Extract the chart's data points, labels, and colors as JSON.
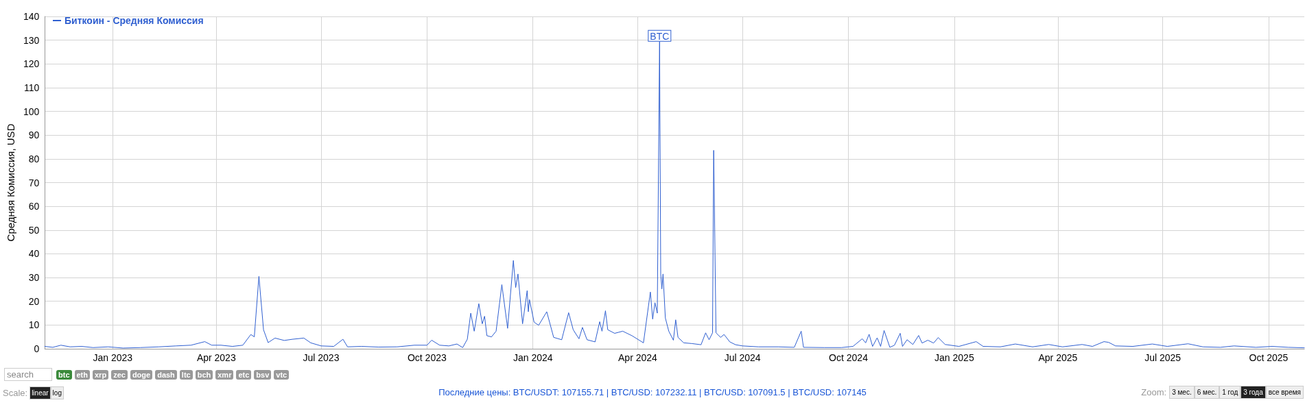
{
  "chart_data": {
    "type": "line",
    "ylabel": "Средняя Комиссия, USD",
    "xlim": [
      "2022-11-03",
      "2025-11-01"
    ],
    "xticks": [
      {
        "value": "2023-01-01",
        "label": "Jan 2023"
      },
      {
        "value": "2023-04-01",
        "label": "Apr 2023"
      },
      {
        "value": "2023-07-01",
        "label": "Jul 2023"
      },
      {
        "value": "2023-10-01",
        "label": "Oct 2023"
      },
      {
        "value": "2024-01-01",
        "label": "Jan 2024"
      },
      {
        "value": "2024-04-01",
        "label": "Apr 2024"
      },
      {
        "value": "2024-07-01",
        "label": "Jul 2024"
      },
      {
        "value": "2024-10-01",
        "label": "Oct 2024"
      },
      {
        "value": "2025-01-01",
        "label": "Jan 2025"
      },
      {
        "value": "2025-04-01",
        "label": "Apr 2025"
      },
      {
        "value": "2025-07-01",
        "label": "Jul 2025"
      },
      {
        "value": "2025-10-01",
        "label": "Oct 2025"
      }
    ],
    "ylim": [
      0,
      140
    ],
    "yticks": [
      0,
      10,
      20,
      30,
      40,
      50,
      60,
      70,
      80,
      90,
      100,
      110,
      120,
      130,
      140
    ],
    "grid": true,
    "legend": "top left",
    "marker": "none",
    "line_style": "solid",
    "series": [
      {
        "name": "Биткоин - Средняя Комиссия",
        "color": "#2f5fd0",
        "x": [
          "2022-11-03",
          "2022-11-10",
          "2022-11-17",
          "2022-11-25",
          "2022-12-05",
          "2022-12-15",
          "2022-12-28",
          "2023-01-10",
          "2023-01-25",
          "2023-02-10",
          "2023-02-25",
          "2023-03-10",
          "2023-03-22",
          "2023-03-28",
          "2023-04-05",
          "2023-04-15",
          "2023-04-24",
          "2023-05-01",
          "2023-05-04",
          "2023-05-08",
          "2023-05-12",
          "2023-05-16",
          "2023-05-22",
          "2023-05-30",
          "2023-06-06",
          "2023-06-16",
          "2023-06-22",
          "2023-07-01",
          "2023-07-12",
          "2023-07-20",
          "2023-07-24",
          "2023-08-05",
          "2023-08-20",
          "2023-09-05",
          "2023-09-20",
          "2023-10-01",
          "2023-10-05",
          "2023-10-12",
          "2023-10-20",
          "2023-10-27",
          "2023-11-01",
          "2023-11-05",
          "2023-11-08",
          "2023-11-11",
          "2023-11-15",
          "2023-11-18",
          "2023-11-20",
          "2023-11-22",
          "2023-11-26",
          "2023-11-30",
          "2023-12-05",
          "2023-12-10",
          "2023-12-15",
          "2023-12-17",
          "2023-12-19",
          "2023-12-23",
          "2023-12-27",
          "2023-12-28",
          "2023-12-29",
          "2024-01-02",
          "2024-01-06",
          "2024-01-13",
          "2024-01-19",
          "2024-01-26",
          "2024-02-01",
          "2024-02-05",
          "2024-02-10",
          "2024-02-13",
          "2024-02-17",
          "2024-02-24",
          "2024-02-28",
          "2024-03-01",
          "2024-03-04",
          "2024-03-06",
          "2024-03-12",
          "2024-03-19",
          "2024-03-27",
          "2024-04-06",
          "2024-04-12",
          "2024-04-14",
          "2024-04-16",
          "2024-04-18",
          "2024-04-20",
          "2024-04-21",
          "2024-04-22",
          "2024-04-23",
          "2024-04-25",
          "2024-04-28",
          "2024-05-02",
          "2024-05-04",
          "2024-05-06",
          "2024-05-11",
          "2024-05-18",
          "2024-05-26",
          "2024-05-30",
          "2024-06-02",
          "2024-06-05",
          "2024-06-06",
          "2024-06-08",
          "2024-06-12",
          "2024-06-15",
          "2024-06-20",
          "2024-06-25",
          "2024-07-01",
          "2024-07-15",
          "2024-08-01",
          "2024-08-15",
          "2024-08-21",
          "2024-08-23",
          "2024-09-10",
          "2024-09-25",
          "2024-10-05",
          "2024-10-13",
          "2024-10-16",
          "2024-10-19",
          "2024-10-22",
          "2024-10-26",
          "2024-10-29",
          "2024-11-01",
          "2024-11-06",
          "2024-11-10",
          "2024-11-15",
          "2024-11-17",
          "2024-11-21",
          "2024-11-26",
          "2024-12-01",
          "2024-12-04",
          "2024-12-09",
          "2024-12-14",
          "2024-12-18",
          "2024-12-24",
          "2025-01-05",
          "2025-01-20",
          "2025-01-26",
          "2025-02-10",
          "2025-02-23",
          "2025-03-10",
          "2025-03-24",
          "2025-04-05",
          "2025-04-22",
          "2025-05-01",
          "2025-05-11",
          "2025-05-15",
          "2025-05-21",
          "2025-06-05",
          "2025-06-22",
          "2025-07-05",
          "2025-07-23",
          "2025-08-05",
          "2025-08-20",
          "2025-09-01",
          "2025-09-20",
          "2025-10-04",
          "2025-10-18",
          "2025-11-01"
        ],
        "values": [
          1,
          0.6,
          1.5,
          0.8,
          1,
          0.5,
          0.8,
          0.3,
          0.5,
          0.8,
          1.2,
          1.5,
          3,
          1.5,
          1.5,
          1,
          1.5,
          6,
          5,
          30.5,
          8,
          2.6,
          4.5,
          3.5,
          4,
          4.5,
          2.5,
          1.2,
          1,
          4,
          0.8,
          1,
          0.7,
          0.8,
          1.5,
          1.5,
          3.6,
          1.5,
          1.2,
          2,
          0.5,
          4,
          15,
          7.4,
          19,
          10.5,
          13.7,
          5.5,
          5,
          7.4,
          27,
          8.6,
          37.2,
          25.8,
          31.5,
          10.5,
          24.5,
          15.6,
          20.7,
          11.2,
          9.9,
          15.6,
          4.8,
          3.8,
          15.2,
          8,
          4.2,
          9,
          3.8,
          2.9,
          11.4,
          7.4,
          16,
          8,
          6.5,
          7.4,
          5.5,
          2.5,
          23.9,
          12.5,
          19.4,
          15,
          129.4,
          31.5,
          25.2,
          31.5,
          13,
          7.4,
          3.6,
          12.2,
          4.8,
          2.5,
          2.2,
          1.7,
          6.7,
          3.8,
          6.7,
          83.6,
          6.7,
          4.8,
          6,
          2.9,
          1.7,
          1.2,
          0.8,
          0.8,
          0.6,
          7.4,
          0.6,
          0.5,
          0.5,
          1,
          4.2,
          2.5,
          6.1,
          1,
          4.6,
          1,
          7.7,
          0.6,
          1.5,
          6.5,
          1,
          3.8,
          1.8,
          5.6,
          2.4,
          3.6,
          2.4,
          4.7,
          1.8,
          1,
          3,
          1,
          0.8,
          2,
          0.8,
          1.8,
          0.8,
          1.8,
          1,
          3,
          2.7,
          1.2,
          1,
          2,
          1,
          2.1,
          0.8,
          0.6,
          1.2,
          0.6,
          1,
          0.6,
          0.4
        ]
      }
    ],
    "annotations": [
      {
        "text": "BTC",
        "x": "2024-04-20",
        "y": 129.4
      },
      "search",
      "btc",
      "eth",
      "xrp",
      "zec",
      "doge",
      "dash",
      "ltc",
      "bch",
      "xmr",
      "etc",
      "bsv",
      "vtc",
      "Scale:",
      "linear",
      "log",
      "Последние цены: BTC/USDT: 107155.71 | BTC/USD: 107232.11 | BTC/USD: 107091.5 | BTC/USD: 107145",
      "Zoom:",
      "3 мес.",
      "6 мес.",
      "1 год",
      "3 года",
      "все время"
    ]
  }
}
